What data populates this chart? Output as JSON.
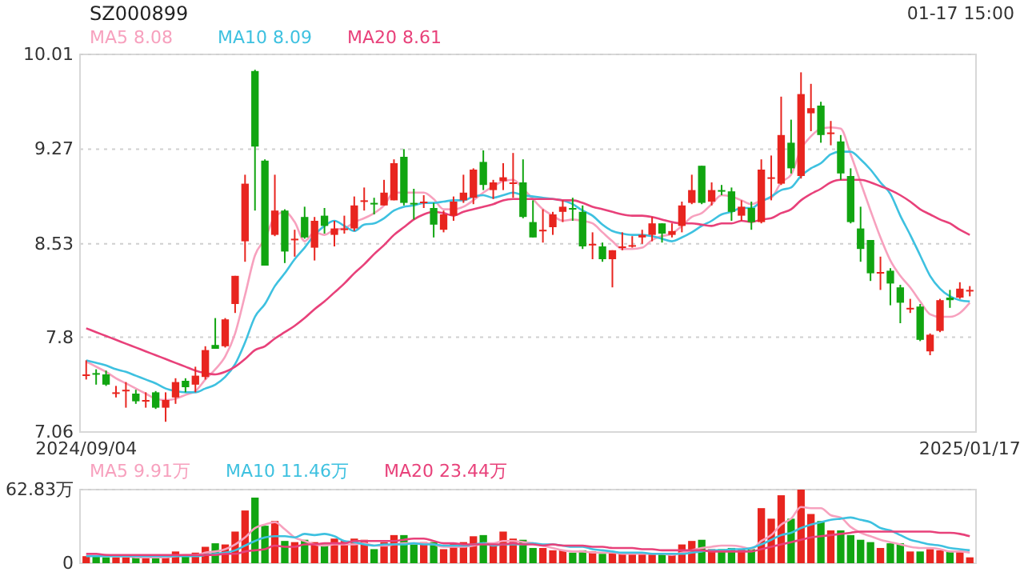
{
  "chart_data": [
    {
      "type": "candlestick",
      "title": "SZ000899",
      "annotations": [
        "01-17 15:00"
      ],
      "legend": "top left",
      "grid": "y",
      "categories": [
        "2024/09/04",
        null,
        null,
        null,
        null,
        null,
        null,
        null,
        null,
        null,
        null,
        null,
        null,
        null,
        null,
        null,
        null,
        null,
        null,
        null,
        null,
        null,
        null,
        null,
        null,
        null,
        null,
        null,
        null,
        null,
        null,
        null,
        null,
        null,
        null,
        null,
        null,
        null,
        null,
        null,
        null,
        null,
        null,
        null,
        null,
        null,
        null,
        null,
        null,
        null,
        null,
        null,
        null,
        null,
        null,
        null,
        null,
        null,
        null,
        null,
        null,
        null,
        null,
        null,
        null,
        null,
        null,
        null,
        null,
        null,
        null,
        null,
        null,
        null,
        null,
        null,
        null,
        null,
        null,
        null,
        null,
        null,
        null,
        null,
        null,
        null,
        null,
        null,
        null,
        "2025/01/17"
      ],
      "ylim": [
        7.06,
        10.01
      ],
      "yticks": [
        7.06,
        7.8,
        8.53,
        9.27,
        10.01
      ],
      "ohlc": [
        [
          7.51,
          7.62,
          7.47,
          7.51
        ],
        [
          7.52,
          7.55,
          7.43,
          7.52
        ],
        [
          7.51,
          7.54,
          7.42,
          7.43
        ],
        [
          7.37,
          7.42,
          7.33,
          7.37
        ],
        [
          7.39,
          7.45,
          7.25,
          7.39
        ],
        [
          7.36,
          7.39,
          7.28,
          7.3
        ],
        [
          7.31,
          7.37,
          7.25,
          7.31
        ],
        [
          7.37,
          7.38,
          7.24,
          7.25
        ],
        [
          7.25,
          7.37,
          7.14,
          7.31
        ],
        [
          7.33,
          7.48,
          7.28,
          7.45
        ],
        [
          7.46,
          7.48,
          7.37,
          7.41
        ],
        [
          7.43,
          7.57,
          7.37,
          7.5
        ],
        [
          7.49,
          7.73,
          7.47,
          7.7
        ],
        [
          7.74,
          7.95,
          7.71,
          7.71
        ],
        [
          7.73,
          7.95,
          7.72,
          7.94
        ],
        [
          8.06,
          8.28,
          7.99,
          8.28
        ],
        [
          8.55,
          9.07,
          8.39,
          9.0
        ],
        [
          9.88,
          9.89,
          8.79,
          9.29
        ],
        [
          9.18,
          9.19,
          8.36,
          8.36
        ],
        [
          8.6,
          9.07,
          8.59,
          8.79
        ],
        [
          8.79,
          8.8,
          8.38,
          8.47
        ],
        [
          8.57,
          8.64,
          8.43,
          8.57
        ],
        [
          8.74,
          8.82,
          8.57,
          8.58
        ],
        [
          8.5,
          8.74,
          8.4,
          8.71
        ],
        [
          8.75,
          8.81,
          8.61,
          8.67
        ],
        [
          8.6,
          8.71,
          8.51,
          8.65
        ],
        [
          8.65,
          8.75,
          8.61,
          8.65
        ],
        [
          8.65,
          8.9,
          8.63,
          8.83
        ],
        [
          8.87,
          8.97,
          8.79,
          8.87
        ],
        [
          8.85,
          8.89,
          8.76,
          8.85
        ],
        [
          8.83,
          9.03,
          8.83,
          8.93
        ],
        [
          8.87,
          9.19,
          8.87,
          9.16
        ],
        [
          9.21,
          9.27,
          8.83,
          8.85
        ],
        [
          8.85,
          8.96,
          8.72,
          8.85
        ],
        [
          8.86,
          8.91,
          8.81,
          8.86
        ],
        [
          8.81,
          8.85,
          8.58,
          8.68
        ],
        [
          8.64,
          8.79,
          8.62,
          8.76
        ],
        [
          8.75,
          8.9,
          8.71,
          8.86
        ],
        [
          8.87,
          9.07,
          8.85,
          8.93
        ],
        [
          8.89,
          9.12,
          8.84,
          9.11
        ],
        [
          9.17,
          9.26,
          8.95,
          8.99
        ],
        [
          8.95,
          9.03,
          8.88,
          9.01
        ],
        [
          9.02,
          9.16,
          8.95,
          9.05
        ],
        [
          9.01,
          9.24,
          8.89,
          9.01
        ],
        [
          9.01,
          9.19,
          8.73,
          8.74
        ],
        [
          8.7,
          8.87,
          8.58,
          8.58
        ],
        [
          8.64,
          8.8,
          8.54,
          8.64
        ],
        [
          8.66,
          8.78,
          8.6,
          8.76
        ],
        [
          8.78,
          8.87,
          8.7,
          8.82
        ],
        [
          8.81,
          8.89,
          8.71,
          8.81
        ],
        [
          8.78,
          8.83,
          8.49,
          8.51
        ],
        [
          8.53,
          8.62,
          8.41,
          8.53
        ],
        [
          8.51,
          8.54,
          8.39,
          8.41
        ],
        [
          8.41,
          8.48,
          8.19,
          8.48
        ],
        [
          8.51,
          8.62,
          8.48,
          8.51
        ],
        [
          8.52,
          8.59,
          8.5,
          8.52
        ],
        [
          8.58,
          8.64,
          8.53,
          8.6
        ],
        [
          8.6,
          8.74,
          8.55,
          8.69
        ],
        [
          8.69,
          8.69,
          8.54,
          8.61
        ],
        [
          8.6,
          8.69,
          8.58,
          8.63
        ],
        [
          8.67,
          8.86,
          8.62,
          8.83
        ],
        [
          8.85,
          9.07,
          8.84,
          8.95
        ],
        [
          9.14,
          9.14,
          8.84,
          8.85
        ],
        [
          8.86,
          9.01,
          8.83,
          8.95
        ],
        [
          8.95,
          8.99,
          8.91,
          8.95
        ],
        [
          8.94,
          8.97,
          8.71,
          8.78
        ],
        [
          8.75,
          8.87,
          8.71,
          8.82
        ],
        [
          8.81,
          8.86,
          8.64,
          8.7
        ],
        [
          8.7,
          9.19,
          8.69,
          9.11
        ],
        [
          9.05,
          9.22,
          8.87,
          9.05
        ],
        [
          9.0,
          9.68,
          8.99,
          9.38
        ],
        [
          9.32,
          9.5,
          9.08,
          9.12
        ],
        [
          9.06,
          9.87,
          9.04,
          9.7
        ],
        [
          9.55,
          9.78,
          9.41,
          9.59
        ],
        [
          9.61,
          9.64,
          9.32,
          9.38
        ],
        [
          9.4,
          9.49,
          9.3,
          9.4
        ],
        [
          9.33,
          9.38,
          9.03,
          9.08
        ],
        [
          9.06,
          9.12,
          8.69,
          8.7
        ],
        [
          8.65,
          8.82,
          8.39,
          8.49
        ],
        [
          8.56,
          8.56,
          8.24,
          8.3
        ],
        [
          8.31,
          8.43,
          8.17,
          8.31
        ],
        [
          8.32,
          8.34,
          8.05,
          8.22
        ],
        [
          8.19,
          8.21,
          7.91,
          8.07
        ],
        [
          8.03,
          8.1,
          7.99,
          8.03
        ],
        [
          8.04,
          8.06,
          7.77,
          7.78
        ],
        [
          7.69,
          7.83,
          7.66,
          7.82
        ],
        [
          7.85,
          8.1,
          7.84,
          8.09
        ],
        [
          8.11,
          8.17,
          8.03,
          8.09
        ],
        [
          8.11,
          8.23,
          8.1,
          8.18
        ],
        [
          8.17,
          8.2,
          8.12,
          8.17
        ]
      ],
      "colors": [
        "#e8251f",
        "#11a511",
        "#11a511",
        "#e8251f",
        "#e8251f",
        "#11a511",
        "#e8251f",
        "#11a511",
        "#e8251f",
        "#e8251f",
        "#11a511",
        "#e8251f",
        "#e8251f",
        "#11a511",
        "#e8251f",
        "#e8251f",
        "#e8251f",
        "#11a511",
        "#11a511",
        "#e8251f",
        "#11a511",
        "#e8251f",
        "#11a511",
        "#e8251f",
        "#11a511",
        "#e8251f",
        "#e8251f",
        "#e8251f",
        "#e8251f",
        "#11a511",
        "#e8251f",
        "#e8251f",
        "#11a511",
        "#11a511",
        "#e8251f",
        "#11a511",
        "#e8251f",
        "#e8251f",
        "#e8251f",
        "#e8251f",
        "#11a511",
        "#e8251f",
        "#e8251f",
        "#e8251f",
        "#11a511",
        "#11a511",
        "#e8251f",
        "#e8251f",
        "#e8251f",
        "#11a511",
        "#11a511",
        "#e8251f",
        "#11a511",
        "#e8251f",
        "#e8251f",
        "#e8251f",
        "#e8251f",
        "#e8251f",
        "#11a511",
        "#e8251f",
        "#e8251f",
        "#e8251f",
        "#11a511",
        "#e8251f",
        "#11a511",
        "#11a511",
        "#e8251f",
        "#11a511",
        "#e8251f",
        "#e8251f",
        "#e8251f",
        "#11a511",
        "#e8251f",
        "#e8251f",
        "#11a511",
        "#e8251f",
        "#11a511",
        "#11a511",
        "#11a511",
        "#11a511",
        "#e8251f",
        "#11a511",
        "#11a511",
        "#e8251f",
        "#11a511",
        "#e8251f",
        "#e8251f",
        "#11a511",
        "#e8251f",
        "#e8251f"
      ],
      "series": [
        {
          "type": "line",
          "name": "MA5 8.08",
          "color": "#f7a1be",
          "values": [
            7.61,
            7.57,
            7.53,
            7.48,
            7.44,
            7.4,
            7.36,
            7.32,
            7.31,
            7.32,
            7.35,
            7.38,
            7.47,
            7.55,
            7.65,
            7.83,
            8.13,
            8.44,
            8.57,
            8.74,
            8.78,
            8.7,
            8.55,
            8.62,
            8.6,
            8.64,
            8.65,
            8.7,
            8.73,
            8.77,
            8.83,
            8.93,
            8.93,
            8.93,
            8.93,
            8.88,
            8.8,
            8.8,
            8.82,
            8.87,
            8.93,
            8.98,
            9.02,
            9.03,
            8.96,
            8.88,
            8.8,
            8.75,
            8.71,
            8.72,
            8.71,
            8.69,
            8.62,
            8.55,
            8.49,
            8.49,
            8.5,
            8.56,
            8.59,
            8.61,
            8.67,
            8.74,
            8.77,
            8.84,
            8.91,
            8.9,
            8.87,
            8.84,
            8.87,
            8.89,
            9.01,
            9.07,
            9.27,
            9.37,
            9.43,
            9.44,
            9.43,
            9.23,
            9.01,
            8.79,
            8.58,
            8.4,
            8.28,
            8.19,
            8.08,
            7.98,
            7.96,
            7.96,
            7.99,
            8.07
          ]
        },
        {
          "type": "line",
          "name": "MA10 8.09",
          "color": "#3ec1e0",
          "values": [
            7.62,
            7.6,
            7.58,
            7.55,
            7.53,
            7.5,
            7.47,
            7.44,
            7.4,
            7.38,
            7.37,
            7.37,
            7.4,
            7.43,
            7.49,
            7.59,
            7.76,
            7.96,
            8.06,
            8.2,
            8.3,
            8.41,
            8.5,
            8.6,
            8.67,
            8.71,
            8.67,
            8.63,
            8.68,
            8.69,
            8.73,
            8.79,
            8.82,
            8.83,
            8.85,
            8.85,
            8.86,
            8.87,
            8.87,
            8.9,
            8.91,
            8.89,
            8.91,
            8.93,
            8.91,
            8.9,
            8.89,
            8.88,
            8.87,
            8.84,
            8.79,
            8.75,
            8.68,
            8.63,
            8.61,
            8.6,
            8.6,
            8.59,
            8.57,
            8.55,
            8.58,
            8.62,
            8.67,
            8.71,
            8.76,
            8.78,
            8.81,
            8.81,
            8.86,
            8.9,
            8.95,
            8.97,
            9.06,
            9.12,
            9.16,
            9.23,
            9.25,
            9.25,
            9.19,
            9.11,
            9.01,
            8.92,
            8.75,
            8.6,
            8.44,
            8.28,
            8.18,
            8.12,
            8.09,
            8.08
          ]
        },
        {
          "type": "line",
          "name": "MA20 8.61",
          "color": "#e8417a",
          "values": [
            7.87,
            7.84,
            7.81,
            7.78,
            7.75,
            7.72,
            7.69,
            7.66,
            7.63,
            7.6,
            7.57,
            7.54,
            7.52,
            7.51,
            7.53,
            7.57,
            7.63,
            7.7,
            7.73,
            7.79,
            7.84,
            7.89,
            7.95,
            8.02,
            8.08,
            8.15,
            8.22,
            8.3,
            8.37,
            8.45,
            8.52,
            8.6,
            8.66,
            8.72,
            8.76,
            8.78,
            8.77,
            8.75,
            8.78,
            8.8,
            8.82,
            8.84,
            8.87,
            8.88,
            8.88,
            8.88,
            8.88,
            8.88,
            8.87,
            8.87,
            8.85,
            8.82,
            8.8,
            8.78,
            8.76,
            8.75,
            8.75,
            8.74,
            8.72,
            8.7,
            8.69,
            8.69,
            8.68,
            8.67,
            8.69,
            8.69,
            8.71,
            8.7,
            8.72,
            8.73,
            8.77,
            8.8,
            8.87,
            8.92,
            8.96,
            9.01,
            9.03,
            9.03,
            9.03,
            9.01,
            8.98,
            8.95,
            8.91,
            8.86,
            8.8,
            8.76,
            8.72,
            8.69,
            8.64,
            8.6
          ]
        }
      ]
    },
    {
      "type": "bar",
      "legend": "top left",
      "grid": "y",
      "tick_labels": "y",
      "categories": [
        null,
        null,
        null,
        null,
        null,
        null,
        null,
        null,
        null,
        null,
        null,
        null,
        null,
        null,
        null,
        null,
        null,
        null,
        null,
        null,
        null,
        null,
        null,
        null,
        null,
        null,
        null,
        null,
        null,
        null,
        null,
        null,
        null,
        null,
        null,
        null,
        null,
        null,
        null,
        null,
        null,
        null,
        null,
        null,
        null,
        null,
        null,
        null,
        null,
        null,
        null,
        null,
        null,
        null,
        null,
        null,
        null,
        null,
        null,
        null,
        null,
        null,
        null,
        null,
        null,
        null,
        null,
        null,
        null,
        null,
        null,
        null,
        null,
        null,
        null,
        null,
        null,
        null,
        null,
        null,
        null,
        null,
        null,
        null,
        null,
        null,
        null,
        null,
        null,
        null
      ],
      "ylim": [
        0,
        62.83
      ],
      "yticks": [
        0,
        {
          "value": 62.83,
          "label": "62.83万"
        }
      ],
      "series": [
        {
          "type": "bar",
          "colors": [
            "#e8251f",
            "#11a511",
            "#11a511",
            "#e8251f",
            "#e8251f",
            "#11a511",
            "#e8251f",
            "#11a511",
            "#e8251f",
            "#e8251f",
            "#11a511",
            "#e8251f",
            "#e8251f",
            "#11a511",
            "#e8251f",
            "#e8251f",
            "#e8251f",
            "#11a511",
            "#11a511",
            "#e8251f",
            "#11a511",
            "#e8251f",
            "#11a511",
            "#e8251f",
            "#11a511",
            "#e8251f",
            "#e8251f",
            "#e8251f",
            "#e8251f",
            "#11a511",
            "#e8251f",
            "#e8251f",
            "#11a511",
            "#11a511",
            "#e8251f",
            "#11a511",
            "#e8251f",
            "#e8251f",
            "#e8251f",
            "#e8251f",
            "#11a511",
            "#e8251f",
            "#e8251f",
            "#e8251f",
            "#11a511",
            "#11a511",
            "#e8251f",
            "#e8251f",
            "#e8251f",
            "#11a511",
            "#11a511",
            "#e8251f",
            "#11a511",
            "#e8251f",
            "#e8251f",
            "#e8251f",
            "#e8251f",
            "#e8251f",
            "#11a511",
            "#e8251f",
            "#e8251f",
            "#e8251f",
            "#11a511",
            "#e8251f",
            "#11a511",
            "#11a511",
            "#e8251f",
            "#11a511",
            "#e8251f",
            "#e8251f",
            "#e8251f",
            "#11a511",
            "#e8251f",
            "#e8251f",
            "#11a511",
            "#e8251f",
            "#11a511",
            "#11a511",
            "#11a511",
            "#11a511",
            "#e8251f",
            "#11a511",
            "#11a511",
            "#e8251f",
            "#11a511",
            "#e8251f",
            "#e8251f",
            "#11a511",
            "#e8251f",
            "#e8251f"
          ],
          "values": [
            6,
            6,
            5,
            5,
            5,
            5,
            5,
            5,
            6,
            10,
            7,
            9,
            14,
            17,
            16,
            27,
            45,
            56,
            32,
            36,
            19,
            18,
            20,
            18,
            16,
            21,
            19,
            21,
            20,
            12,
            18,
            24,
            24,
            16,
            18,
            18,
            12,
            17,
            18,
            23,
            24,
            16,
            27,
            21,
            20,
            13,
            13,
            11,
            11,
            9,
            11,
            10,
            8,
            9,
            8,
            8,
            8,
            8,
            8,
            7,
            16,
            19,
            20,
            12,
            12,
            13,
            12,
            12,
            47,
            38,
            58,
            38,
            62.83,
            42,
            36,
            28,
            28,
            24,
            20,
            18,
            13,
            17,
            17,
            10,
            10,
            12,
            11,
            10,
            10,
            5
          ]
        },
        {
          "type": "line",
          "name": "MA5 9.91万",
          "color": "#f7a1be",
          "values": [
            7,
            7,
            7,
            6,
            6,
            5,
            5,
            5,
            5,
            6,
            7,
            7,
            9,
            10,
            12,
            16,
            22,
            30,
            33,
            35,
            29,
            22,
            19,
            16,
            15,
            16,
            16,
            16,
            17,
            15,
            15,
            16,
            17,
            17,
            17,
            16,
            14,
            14,
            14,
            15,
            17,
            17,
            19,
            19,
            18,
            17,
            15,
            13,
            11,
            10,
            10,
            9,
            9,
            9,
            8,
            8,
            8,
            8,
            8,
            7,
            9,
            11,
            13,
            14,
            15,
            15,
            14,
            12,
            19,
            24,
            33,
            38,
            48,
            47,
            47,
            41,
            39,
            31,
            26,
            23,
            20,
            18,
            16,
            14,
            13,
            13,
            12,
            10,
            10,
            9
          ]
        },
        {
          "type": "line",
          "name": "MA10 11.46万",
          "color": "#3ec1e0",
          "values": [
            6,
            6,
            6,
            6,
            6,
            6,
            6,
            6,
            6,
            6,
            6,
            6,
            7,
            8,
            9,
            11,
            15,
            19,
            22,
            23,
            23,
            22,
            25,
            24,
            25,
            23,
            19,
            18,
            16,
            15,
            16,
            16,
            16,
            17,
            16,
            16,
            15,
            15,
            15,
            16,
            17,
            15,
            16,
            16,
            16,
            17,
            16,
            16,
            15,
            14,
            14,
            12,
            11,
            10,
            9,
            9,
            9,
            8,
            8,
            8,
            8,
            9,
            10,
            11,
            11,
            12,
            12,
            13,
            16,
            20,
            24,
            26,
            30,
            33,
            35,
            37,
            38,
            39,
            37,
            35,
            30,
            28,
            24,
            20,
            18,
            16,
            15,
            13,
            12,
            11
          ]
        },
        {
          "type": "line",
          "name": "MA20 23.44万",
          "color": "#e8417a",
          "values": [
            8,
            8,
            7,
            7,
            7,
            7,
            7,
            7,
            7,
            7,
            7,
            7,
            7,
            7,
            8,
            8,
            10,
            11,
            12,
            15,
            14,
            14,
            16,
            16,
            17,
            17,
            17,
            19,
            19,
            19,
            19,
            19,
            20,
            21,
            21,
            19,
            17,
            17,
            16,
            16,
            16,
            16,
            16,
            17,
            16,
            16,
            15,
            16,
            15,
            15,
            15,
            14,
            14,
            13,
            13,
            13,
            12,
            12,
            11,
            11,
            11,
            11,
            11,
            10,
            10,
            10,
            10,
            10,
            12,
            14,
            16,
            18,
            20,
            22,
            23,
            24,
            25,
            26,
            27,
            27,
            27,
            27,
            27,
            27,
            27,
            27,
            26,
            26,
            25,
            23
          ]
        }
      ]
    }
  ]
}
